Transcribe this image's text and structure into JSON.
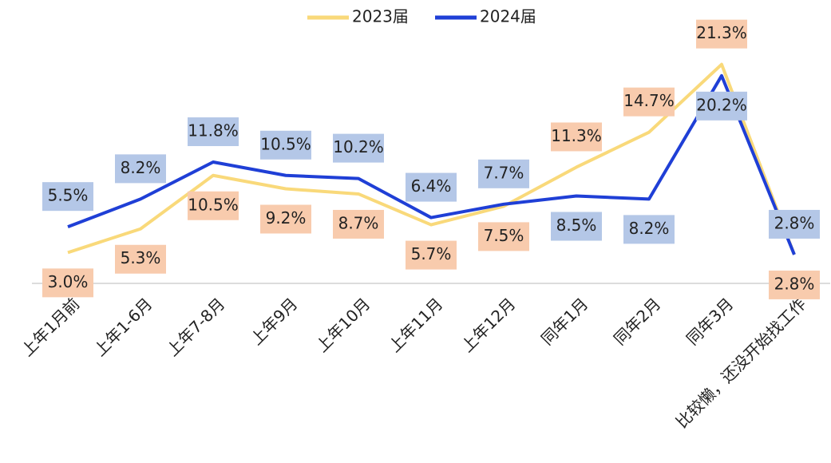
{
  "chart_data": {
    "type": "line",
    "categories": [
      "上年1月前",
      "上年1-6月",
      "上年7-8月",
      "上年9月",
      "上年10月",
      "上年11月",
      "上年12月",
      "同年1月",
      "同年2月",
      "同年3月",
      "比较懒，还没开始找工作"
    ],
    "series": [
      {
        "name": "2023届",
        "color": "#f9d97a",
        "label_color": "#f8cbad",
        "values": [
          3.0,
          5.3,
          10.5,
          9.2,
          8.7,
          5.7,
          7.5,
          11.3,
          14.7,
          21.3,
          2.8
        ],
        "value_labels": [
          "3.0%",
          "5.3%",
          "10.5%",
          "9.2%",
          "8.7%",
          "5.7%",
          "7.5%",
          "11.3%",
          "14.7%",
          "21.3%",
          "2.8%"
        ]
      },
      {
        "name": "2024届",
        "color": "#1f3fd6",
        "label_color": "#b4c7e7",
        "values": [
          5.5,
          8.2,
          11.8,
          10.5,
          10.2,
          6.4,
          7.7,
          8.5,
          8.2,
          20.2,
          2.8
        ],
        "value_labels": [
          "5.5%",
          "8.2%",
          "11.8%",
          "10.5%",
          "10.2%",
          "6.4%",
          "7.7%",
          "8.5%",
          "8.2%",
          "20.2%",
          "2.8%"
        ]
      }
    ],
    "ylim": [
      0,
      25
    ]
  }
}
